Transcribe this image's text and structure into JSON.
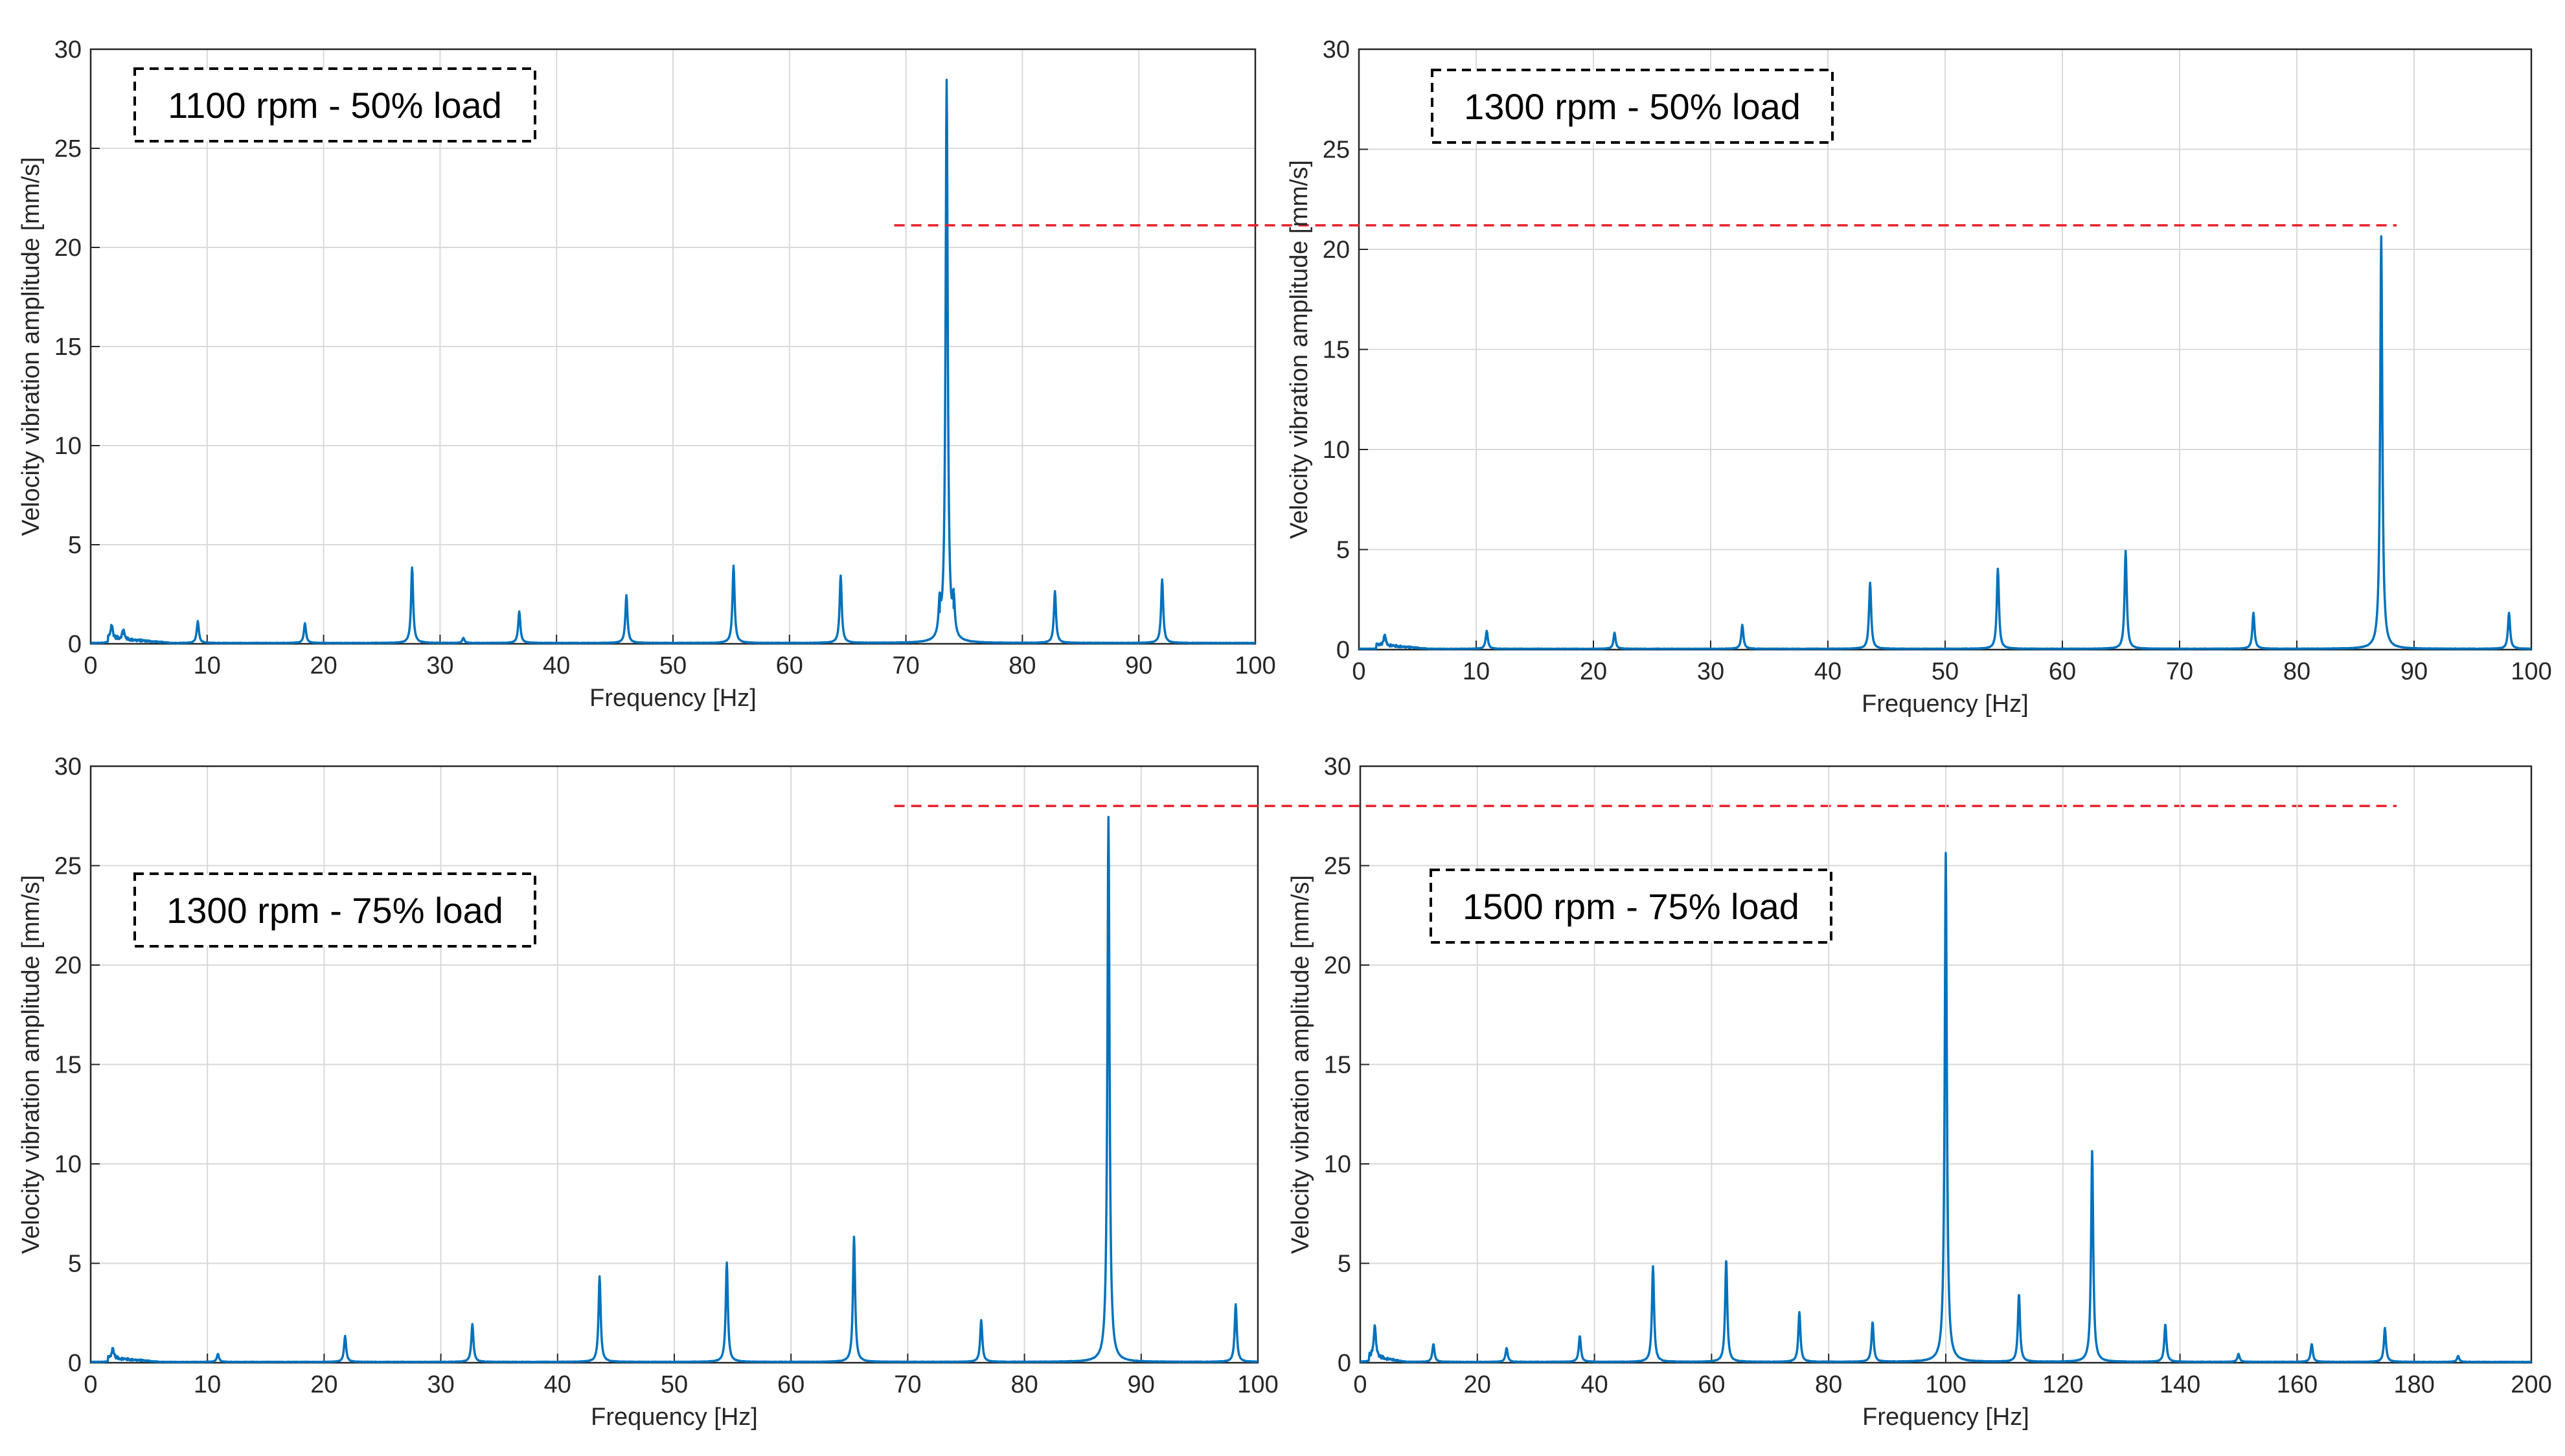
{
  "colors": {
    "series": "#0072BD",
    "grid": "#d9d9d9",
    "axis": "#262626",
    "threshold": "#e8202a",
    "annotation_border": "#000000"
  },
  "chart_data": [
    {
      "id": "p1100_50",
      "type": "line",
      "annotation": "1100 rpm - 50% load",
      "xlabel": "Frequency [Hz]",
      "ylabel": "Velocity vibration amplitude [mm/s]",
      "xlim": [
        0,
        100
      ],
      "ylim": [
        0,
        30
      ],
      "xticks": [
        "0",
        "10",
        "20",
        "30",
        "40",
        "50",
        "60",
        "70",
        "80",
        "90",
        "100"
      ],
      "yticks": [
        "0",
        "5",
        "10",
        "15",
        "20",
        "25",
        "30"
      ],
      "grid": true,
      "noise": {
        "start": 1.5,
        "end": 7,
        "level": 0.35
      },
      "peaks": [
        {
          "f": 1.8,
          "a": 0.7
        },
        {
          "f": 2.8,
          "a": 0.5
        },
        {
          "f": 9.2,
          "a": 1.1
        },
        {
          "f": 18.4,
          "a": 1.0
        },
        {
          "f": 27.6,
          "a": 3.8
        },
        {
          "f": 32.0,
          "a": 0.25
        },
        {
          "f": 36.8,
          "a": 1.6
        },
        {
          "f": 46.0,
          "a": 2.4
        },
        {
          "f": 55.2,
          "a": 3.9
        },
        {
          "f": 64.4,
          "a": 3.4
        },
        {
          "f": 72.9,
          "a": 1.6
        },
        {
          "f": 73.5,
          "a": 28.3
        },
        {
          "f": 74.1,
          "a": 1.8
        },
        {
          "f": 82.8,
          "a": 2.6
        },
        {
          "f": 92.0,
          "a": 3.2
        }
      ]
    },
    {
      "id": "p1300_50",
      "type": "line",
      "annotation": "1300 rpm - 50% load",
      "xlabel": "Frequency [Hz]",
      "ylabel": "Velocity vibration amplitude [mm/s]",
      "xlim": [
        0,
        100
      ],
      "ylim": [
        0,
        30
      ],
      "xticks": [
        "0",
        "10",
        "20",
        "30",
        "40",
        "50",
        "60",
        "70",
        "80",
        "90",
        "100"
      ],
      "yticks": [
        "0",
        "5",
        "10",
        "15",
        "20",
        "25",
        "30"
      ],
      "grid": true,
      "noise": {
        "start": 1.5,
        "end": 6,
        "level": 0.3
      },
      "peaks": [
        {
          "f": 2.2,
          "a": 0.5
        },
        {
          "f": 10.9,
          "a": 0.9
        },
        {
          "f": 21.8,
          "a": 0.8
        },
        {
          "f": 32.7,
          "a": 1.2
        },
        {
          "f": 43.6,
          "a": 3.3
        },
        {
          "f": 54.5,
          "a": 4.0
        },
        {
          "f": 65.4,
          "a": 4.9
        },
        {
          "f": 76.3,
          "a": 1.8
        },
        {
          "f": 87.2,
          "a": 20.6
        },
        {
          "f": 98.1,
          "a": 1.8
        }
      ],
      "threshold": {
        "y": 21.2,
        "x_start": 69,
        "x_end_frac": 0.87
      }
    },
    {
      "id": "p1300_75",
      "type": "line",
      "annotation": "1300 rpm - 75% load",
      "xlabel": "Frequency [Hz]",
      "ylabel": "Velocity vibration amplitude [mm/s]",
      "xlim": [
        0,
        100
      ],
      "ylim": [
        0,
        30
      ],
      "xticks": [
        "0",
        "10",
        "20",
        "30",
        "40",
        "50",
        "60",
        "70",
        "80",
        "90",
        "100"
      ],
      "yticks": [
        "0",
        "5",
        "10",
        "15",
        "20",
        "25",
        "30"
      ],
      "grid": true,
      "noise": {
        "start": 1.5,
        "end": 6,
        "level": 0.3
      },
      "peaks": [
        {
          "f": 1.9,
          "a": 0.5
        },
        {
          "f": 10.9,
          "a": 0.4
        },
        {
          "f": 21.8,
          "a": 1.3
        },
        {
          "f": 32.7,
          "a": 1.9
        },
        {
          "f": 43.6,
          "a": 4.3
        },
        {
          "f": 54.5,
          "a": 5.0
        },
        {
          "f": 65.4,
          "a": 6.3
        },
        {
          "f": 76.3,
          "a": 2.1
        },
        {
          "f": 87.2,
          "a": 27.4
        },
        {
          "f": 98.1,
          "a": 2.9
        }
      ],
      "threshold": {
        "y": 28.0,
        "x_start": 69,
        "x_end_frac": 0.87
      }
    },
    {
      "id": "p1500_75",
      "type": "line",
      "annotation": "1500 rpm - 75% load",
      "xlabel": "Frequency [Hz]",
      "ylabel": "Velocity vibration amplitude [mm/s]",
      "xlim": [
        0,
        200
      ],
      "ylim": [
        0,
        30
      ],
      "xticks": [
        "0",
        "20",
        "40",
        "60",
        "80",
        "100",
        "120",
        "140",
        "160",
        "180",
        "200"
      ],
      "yticks": [
        "0",
        "5",
        "10",
        "15",
        "20",
        "25",
        "30"
      ],
      "grid": true,
      "noise": {
        "start": 1.5,
        "end": 8,
        "level": 0.4
      },
      "peaks": [
        {
          "f": 2.5,
          "a": 1.6
        },
        {
          "f": 12.5,
          "a": 0.9
        },
        {
          "f": 25.0,
          "a": 0.7
        },
        {
          "f": 37.5,
          "a": 1.3
        },
        {
          "f": 50.0,
          "a": 4.8
        },
        {
          "f": 62.5,
          "a": 5.1
        },
        {
          "f": 75.0,
          "a": 2.5
        },
        {
          "f": 87.5,
          "a": 2.0
        },
        {
          "f": 100.0,
          "a": 25.6
        },
        {
          "f": 112.5,
          "a": 3.4
        },
        {
          "f": 125.0,
          "a": 10.6
        },
        {
          "f": 137.5,
          "a": 1.9
        },
        {
          "f": 150.0,
          "a": 0.4
        },
        {
          "f": 162.5,
          "a": 0.9
        },
        {
          "f": 175.0,
          "a": 1.7
        },
        {
          "f": 187.5,
          "a": 0.3
        }
      ]
    }
  ]
}
